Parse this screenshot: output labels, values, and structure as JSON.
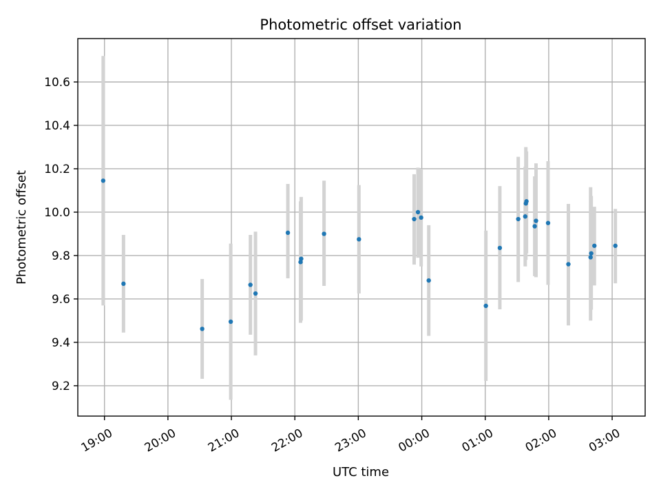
{
  "chart_data": {
    "type": "scatter",
    "title": "Photometric offset variation",
    "xlabel": "UTC time",
    "ylabel": "Photometric offset",
    "x_unit": "hours since 19:00 UTC",
    "xlim": [
      -0.42,
      8.52
    ],
    "ylim": [
      9.06,
      10.8
    ],
    "grid": true,
    "x_ticks": [
      {
        "value": 0,
        "label": "19:00"
      },
      {
        "value": 1,
        "label": "20:00"
      },
      {
        "value": 2,
        "label": "21:00"
      },
      {
        "value": 3,
        "label": "22:00"
      },
      {
        "value": 4,
        "label": "23:00"
      },
      {
        "value": 5,
        "label": "00:00"
      },
      {
        "value": 6,
        "label": "01:00"
      },
      {
        "value": 7,
        "label": "02:00"
      },
      {
        "value": 8,
        "label": "03:00"
      }
    ],
    "y_ticks": [
      {
        "value": 9.2,
        "label": "9.2"
      },
      {
        "value": 9.4,
        "label": "9.4"
      },
      {
        "value": 9.6,
        "label": "9.6"
      },
      {
        "value": 9.8,
        "label": "9.8"
      },
      {
        "value": 10.0,
        "label": "10.0"
      },
      {
        "value": 10.2,
        "label": "10.2"
      },
      {
        "value": 10.4,
        "label": "10.4"
      },
      {
        "value": 10.6,
        "label": "10.6"
      }
    ],
    "series": [
      {
        "name": "offset",
        "color": "#1f77b4",
        "error_color": "#d3d3d3",
        "points": [
          {
            "x": -0.02,
            "y": 10.145,
            "lo": 9.57,
            "hi": 10.72
          },
          {
            "x": 0.3,
            "y": 9.67,
            "lo": 9.445,
            "hi": 9.895
          },
          {
            "x": 1.54,
            "y": 9.462,
            "lo": 9.232,
            "hi": 9.692
          },
          {
            "x": 1.99,
            "y": 9.495,
            "lo": 9.135,
            "hi": 9.855
          },
          {
            "x": 2.3,
            "y": 9.665,
            "lo": 9.435,
            "hi": 9.895
          },
          {
            "x": 2.38,
            "y": 9.625,
            "lo": 9.34,
            "hi": 9.91
          },
          {
            "x": 2.89,
            "y": 9.905,
            "lo": 9.695,
            "hi": 10.13
          },
          {
            "x": 3.09,
            "y": 9.77,
            "lo": 9.49,
            "hi": 10.05
          },
          {
            "x": 3.1,
            "y": 9.785,
            "lo": 9.5,
            "hi": 10.07
          },
          {
            "x": 3.46,
            "y": 9.9,
            "lo": 9.66,
            "hi": 10.145
          },
          {
            "x": 4.01,
            "y": 9.875,
            "lo": 9.625,
            "hi": 10.125
          },
          {
            "x": 4.88,
            "y": 9.968,
            "lo": 9.758,
            "hi": 10.175
          },
          {
            "x": 4.94,
            "y": 10.0,
            "lo": 9.79,
            "hi": 10.205
          },
          {
            "x": 4.99,
            "y": 9.975,
            "lo": 9.75,
            "hi": 10.2
          },
          {
            "x": 5.11,
            "y": 9.685,
            "lo": 9.43,
            "hi": 9.94
          },
          {
            "x": 6.01,
            "y": 9.568,
            "lo": 9.222,
            "hi": 9.915
          },
          {
            "x": 6.23,
            "y": 9.835,
            "lo": 9.552,
            "hi": 10.12
          },
          {
            "x": 6.52,
            "y": 9.968,
            "lo": 9.678,
            "hi": 10.255
          },
          {
            "x": 6.63,
            "y": 9.98,
            "lo": 9.75,
            "hi": 10.21
          },
          {
            "x": 6.64,
            "y": 10.04,
            "lo": 9.78,
            "hi": 10.3
          },
          {
            "x": 6.65,
            "y": 10.05,
            "lo": 9.81,
            "hi": 10.28
          },
          {
            "x": 6.78,
            "y": 9.935,
            "lo": 9.705,
            "hi": 10.165
          },
          {
            "x": 6.8,
            "y": 9.96,
            "lo": 9.7,
            "hi": 10.225
          },
          {
            "x": 6.99,
            "y": 9.95,
            "lo": 9.665,
            "hi": 10.235
          },
          {
            "x": 7.31,
            "y": 9.76,
            "lo": 9.478,
            "hi": 10.038
          },
          {
            "x": 7.66,
            "y": 9.792,
            "lo": 9.5,
            "hi": 10.115
          },
          {
            "x": 7.67,
            "y": 9.81,
            "lo": 9.55,
            "hi": 10.075
          },
          {
            "x": 7.72,
            "y": 9.845,
            "lo": 9.662,
            "hi": 10.025
          },
          {
            "x": 8.05,
            "y": 9.845,
            "lo": 9.672,
            "hi": 10.015
          }
        ]
      }
    ]
  }
}
